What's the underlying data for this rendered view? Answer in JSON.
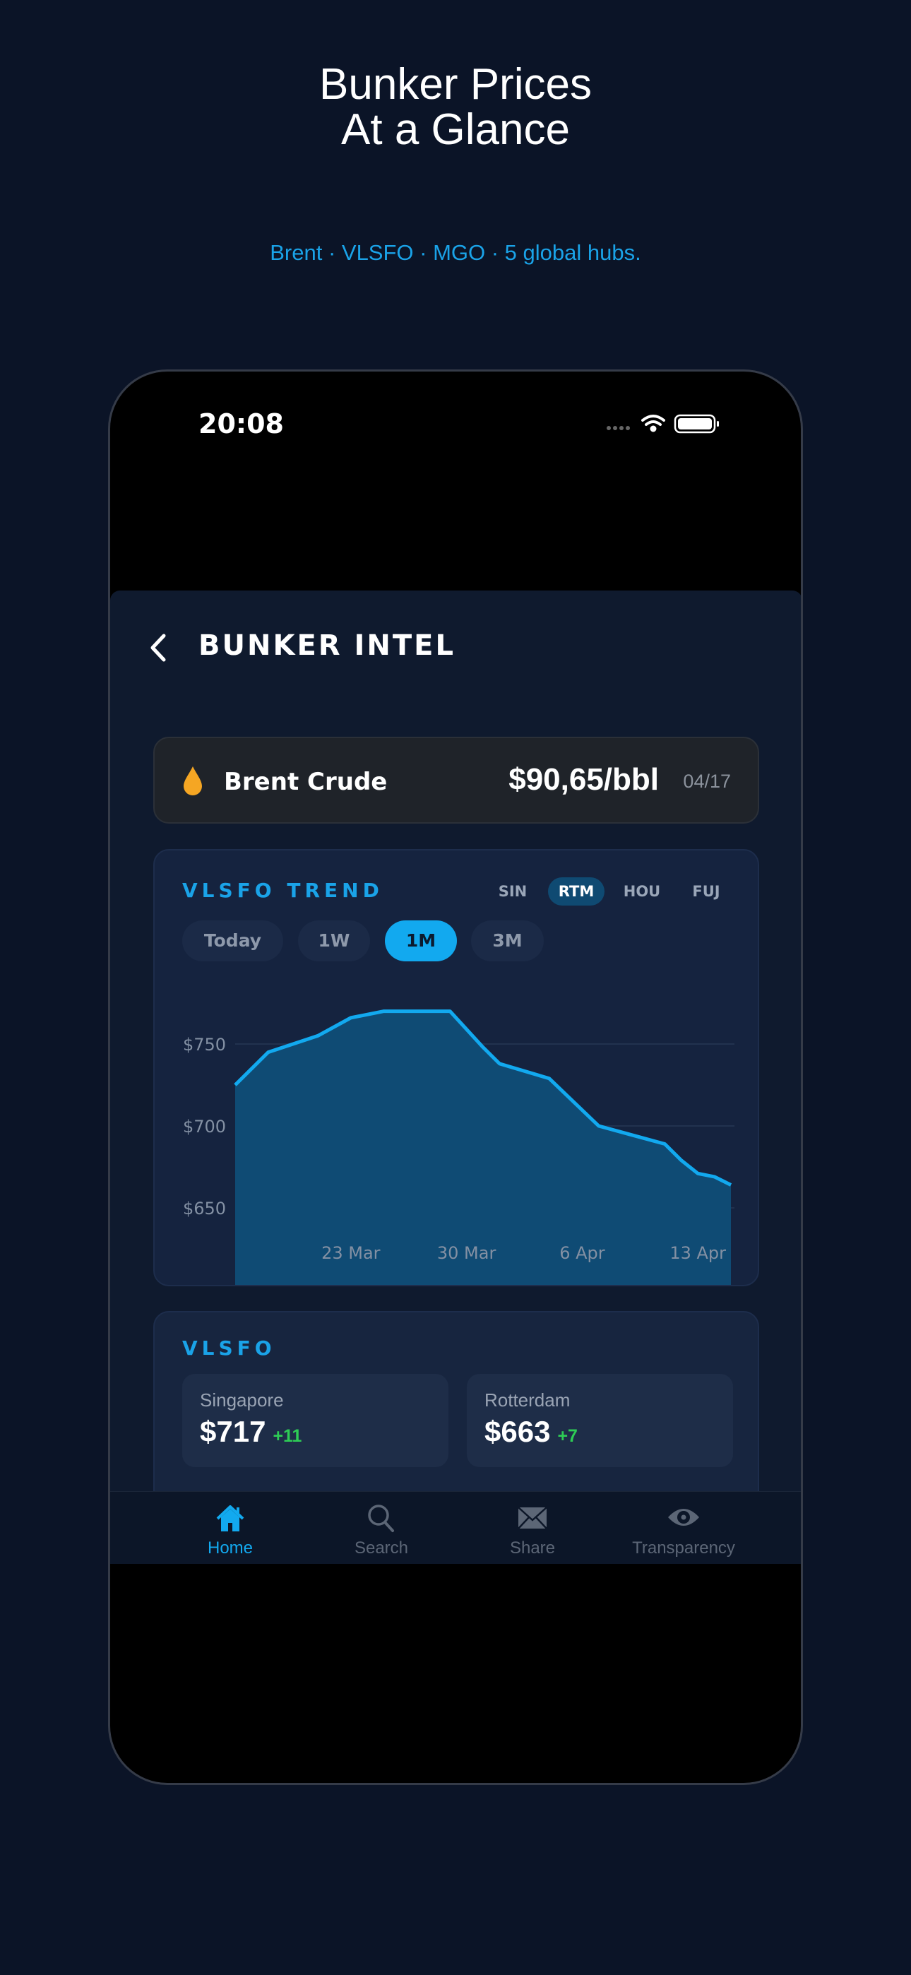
{
  "hero": {
    "title_line1": "Bunker Prices",
    "title_line2": "At a Glance",
    "subtitle": "Brent · VLSFO · MGO · 5 global hubs."
  },
  "status_bar": {
    "time": "20:08",
    "icons": [
      "signal-dots-icon",
      "wifi-icon",
      "battery-icon"
    ]
  },
  "header": {
    "back_icon": "chevron-left-icon",
    "title": "BUNKER INTEL"
  },
  "brent": {
    "icon": "drop-icon",
    "label": "Brent Crude",
    "price": "$90,65/bbl",
    "date": "04/17",
    "icon_color": "#f5a623"
  },
  "trend": {
    "title": "VLSFO TREND",
    "hubs": [
      {
        "label": "SIN",
        "active": false
      },
      {
        "label": "RTM",
        "active": true
      },
      {
        "label": "HOU",
        "active": false
      },
      {
        "label": "FUJ",
        "active": false
      }
    ],
    "periods": [
      {
        "label": "Today",
        "active": false
      },
      {
        "label": "1W",
        "active": false
      },
      {
        "label": "1M",
        "active": true
      },
      {
        "label": "3M",
        "active": false
      }
    ]
  },
  "chart_data": {
    "type": "area",
    "x_ticks": [
      "23 Mar",
      "30 Mar",
      "6 Apr",
      "13 Apr"
    ],
    "y_ticks": [
      "$750",
      "$700",
      "$650"
    ],
    "y_tick_values": [
      750,
      700,
      650
    ],
    "grid": true,
    "line_color": "#12a9ef",
    "fill_color": "#0f4b74",
    "points": [
      {
        "x": "16 Mar",
        "y": 725
      },
      {
        "x": "18 Mar",
        "y": 745
      },
      {
        "x": "21 Mar",
        "y": 755
      },
      {
        "x": "23 Mar",
        "y": 766
      },
      {
        "x": "25 Mar",
        "y": 770
      },
      {
        "x": "29 Mar",
        "y": 770
      },
      {
        "x": "31 Mar",
        "y": 748
      },
      {
        "x": "1 Apr",
        "y": 738
      },
      {
        "x": "4 Apr",
        "y": 729
      },
      {
        "x": "7 Apr",
        "y": 700
      },
      {
        "x": "11 Apr",
        "y": 689
      },
      {
        "x": "12 Apr",
        "y": 679
      },
      {
        "x": "13 Apr",
        "y": 671
      },
      {
        "x": "14 Apr",
        "y": 669
      },
      {
        "x": "15 Apr",
        "y": 664
      }
    ]
  },
  "vlsfo": {
    "title": "VLSFO",
    "tiles": [
      {
        "port": "Singapore",
        "price": "$717",
        "change": "+11"
      },
      {
        "port": "Rotterdam",
        "price": "$663",
        "change": "+7"
      }
    ],
    "change_color": "#2ecc55"
  },
  "tabbar": {
    "items": [
      {
        "label": "Home",
        "icon": "home-icon",
        "active": true
      },
      {
        "label": "Search",
        "icon": "search-icon",
        "active": false
      },
      {
        "label": "Share",
        "icon": "envelope-icon",
        "active": false
      },
      {
        "label": "Transparency",
        "icon": "eye-icon",
        "active": false
      }
    ]
  }
}
